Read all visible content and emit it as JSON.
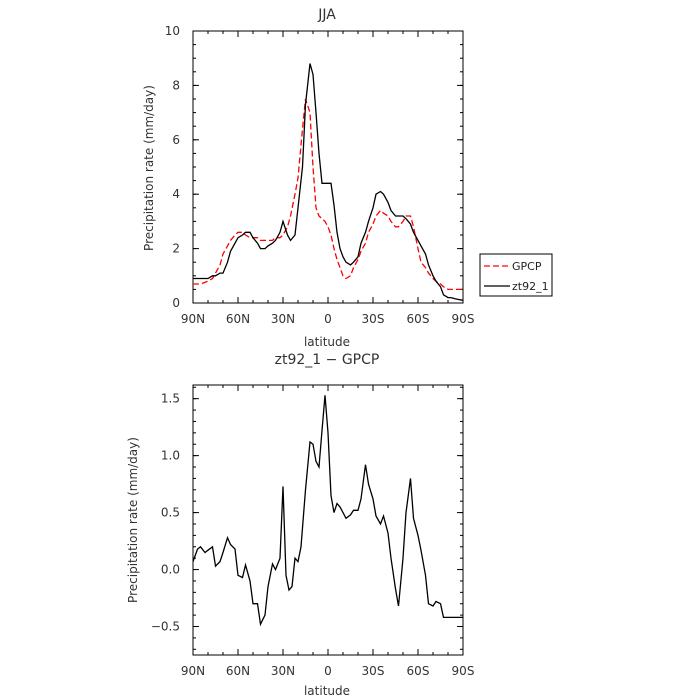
{
  "chart_data": [
    {
      "type": "line",
      "title": "JJA",
      "xlabel": "latitude",
      "ylabel": "Precipitation rate (mm/day)",
      "x_ticks": [
        "90N",
        "60N",
        "30N",
        "0",
        "30S",
        "60S",
        "90S"
      ],
      "xlim": [
        90,
        -90
      ],
      "ylim": [
        0,
        10
      ],
      "y_ticks": [
        "0",
        "2",
        "4",
        "6",
        "8",
        "10"
      ],
      "x": [
        90,
        85,
        80,
        77,
        75,
        72,
        70,
        67,
        65,
        62,
        60,
        57,
        55,
        52,
        50,
        47,
        45,
        42,
        40,
        37,
        35,
        32,
        30,
        27,
        25,
        22,
        20,
        17,
        15,
        12,
        10,
        8,
        6,
        4,
        2,
        0,
        -2,
        -4,
        -6,
        -8,
        -10,
        -12,
        -15,
        -17,
        -20,
        -22,
        -25,
        -27,
        -30,
        -32,
        -35,
        -37,
        -40,
        -42,
        -45,
        -47,
        -50,
        -52,
        -55,
        -57,
        -60,
        -62,
        -65,
        -67,
        -70,
        -72,
        -75,
        -77,
        -80,
        -82,
        -85,
        -90
      ],
      "legend_position": "right, outside",
      "series": [
        {
          "name": "GPCP",
          "color": "#ff0000",
          "dash": true,
          "values": [
            0.7,
            0.7,
            0.8,
            0.9,
            1.1,
            1.4,
            1.8,
            2.1,
            2.3,
            2.5,
            2.6,
            2.6,
            2.5,
            2.4,
            2.4,
            2.4,
            2.3,
            2.3,
            2.3,
            2.3,
            2.4,
            2.4,
            2.5,
            2.8,
            3.2,
            4.0,
            4.6,
            6.4,
            7.5,
            7.0,
            5.0,
            3.5,
            3.2,
            3.1,
            3.0,
            2.8,
            2.5,
            2.0,
            1.6,
            1.3,
            1.0,
            0.9,
            1.0,
            1.3,
            1.6,
            1.9,
            2.2,
            2.6,
            2.9,
            3.2,
            3.4,
            3.3,
            3.2,
            3.0,
            2.8,
            2.8,
            3.0,
            3.2,
            3.2,
            2.8,
            2.0,
            1.5,
            1.3,
            1.1,
            0.9,
            0.8,
            0.7,
            0.6,
            0.5,
            0.5,
            0.5,
            0.5
          ]
        },
        {
          "name": "zt92_1",
          "color": "#000000",
          "dash": false,
          "values": [
            0.9,
            0.9,
            0.9,
            1.0,
            1.0,
            1.1,
            1.1,
            1.5,
            1.9,
            2.2,
            2.4,
            2.5,
            2.6,
            2.6,
            2.4,
            2.2,
            2.0,
            2.0,
            2.1,
            2.2,
            2.3,
            2.6,
            3.0,
            2.5,
            2.3,
            2.5,
            3.5,
            5.0,
            7.3,
            8.8,
            8.4,
            7.0,
            5.5,
            4.4,
            4.4,
            4.4,
            4.4,
            3.6,
            2.6,
            2.0,
            1.7,
            1.5,
            1.4,
            1.5,
            1.7,
            2.2,
            2.6,
            3.0,
            3.5,
            4.0,
            4.1,
            4.0,
            3.7,
            3.4,
            3.2,
            3.2,
            3.2,
            3.1,
            2.9,
            2.6,
            2.3,
            2.1,
            1.8,
            1.4,
            1.0,
            0.8,
            0.6,
            0.3,
            0.2,
            0.2,
            0.15,
            0.1
          ]
        }
      ]
    },
    {
      "type": "line",
      "title": "zt92_1 − GPCP",
      "xlabel": "latitude",
      "ylabel": "Precipitation rate (mm/day)",
      "x_ticks": [
        "90N",
        "60N",
        "30N",
        "0",
        "30S",
        "60S",
        "90S"
      ],
      "xlim": [
        90,
        -90
      ],
      "ylim": [
        -0.75,
        1.62
      ],
      "y_ticks": [
        "−0.5",
        "0.0",
        "0.5",
        "1.0",
        "1.5"
      ],
      "y_tick_values": [
        -0.5,
        0.0,
        0.5,
        1.0,
        1.5
      ],
      "x": [
        90,
        87,
        85,
        82,
        80,
        77,
        75,
        72,
        70,
        67,
        65,
        62,
        60,
        57,
        55,
        52,
        50,
        47,
        45,
        42,
        40,
        37,
        35,
        32,
        30,
        28,
        26,
        24,
        22,
        20,
        18,
        15,
        12,
        10,
        8,
        6,
        4,
        2,
        0,
        -2,
        -4,
        -6,
        -8,
        -10,
        -12,
        -15,
        -17,
        -20,
        -22,
        -25,
        -27,
        -30,
        -32,
        -35,
        -37,
        -40,
        -42,
        -45,
        -47,
        -50,
        -52,
        -55,
        -57,
        -60,
        -62,
        -65,
        -67,
        -70,
        -72,
        -75,
        -77,
        -80,
        -82,
        -85,
        -88,
        -90
      ],
      "series": [
        {
          "name": "",
          "color": "#000000",
          "dash": false,
          "values": [
            0.07,
            0.18,
            0.2,
            0.15,
            0.17,
            0.2,
            0.03,
            0.07,
            0.15,
            0.28,
            0.22,
            0.18,
            -0.05,
            -0.07,
            0.04,
            -0.1,
            -0.3,
            -0.3,
            -0.48,
            -0.4,
            -0.15,
            0.05,
            0.0,
            0.1,
            0.73,
            -0.05,
            -0.18,
            -0.15,
            0.1,
            0.07,
            0.2,
            0.7,
            1.12,
            1.1,
            0.95,
            0.9,
            1.22,
            1.53,
            1.2,
            0.65,
            0.5,
            0.58,
            0.55,
            0.5,
            0.45,
            0.48,
            0.52,
            0.52,
            0.62,
            0.92,
            0.75,
            0.62,
            0.47,
            0.4,
            0.47,
            0.32,
            0.1,
            -0.17,
            -0.32,
            0.1,
            0.5,
            0.8,
            0.45,
            0.3,
            0.17,
            -0.05,
            -0.3,
            -0.32,
            -0.28,
            -0.3,
            -0.42,
            -0.42,
            -0.42,
            -0.42,
            -0.42,
            -0.42
          ]
        }
      ]
    }
  ]
}
